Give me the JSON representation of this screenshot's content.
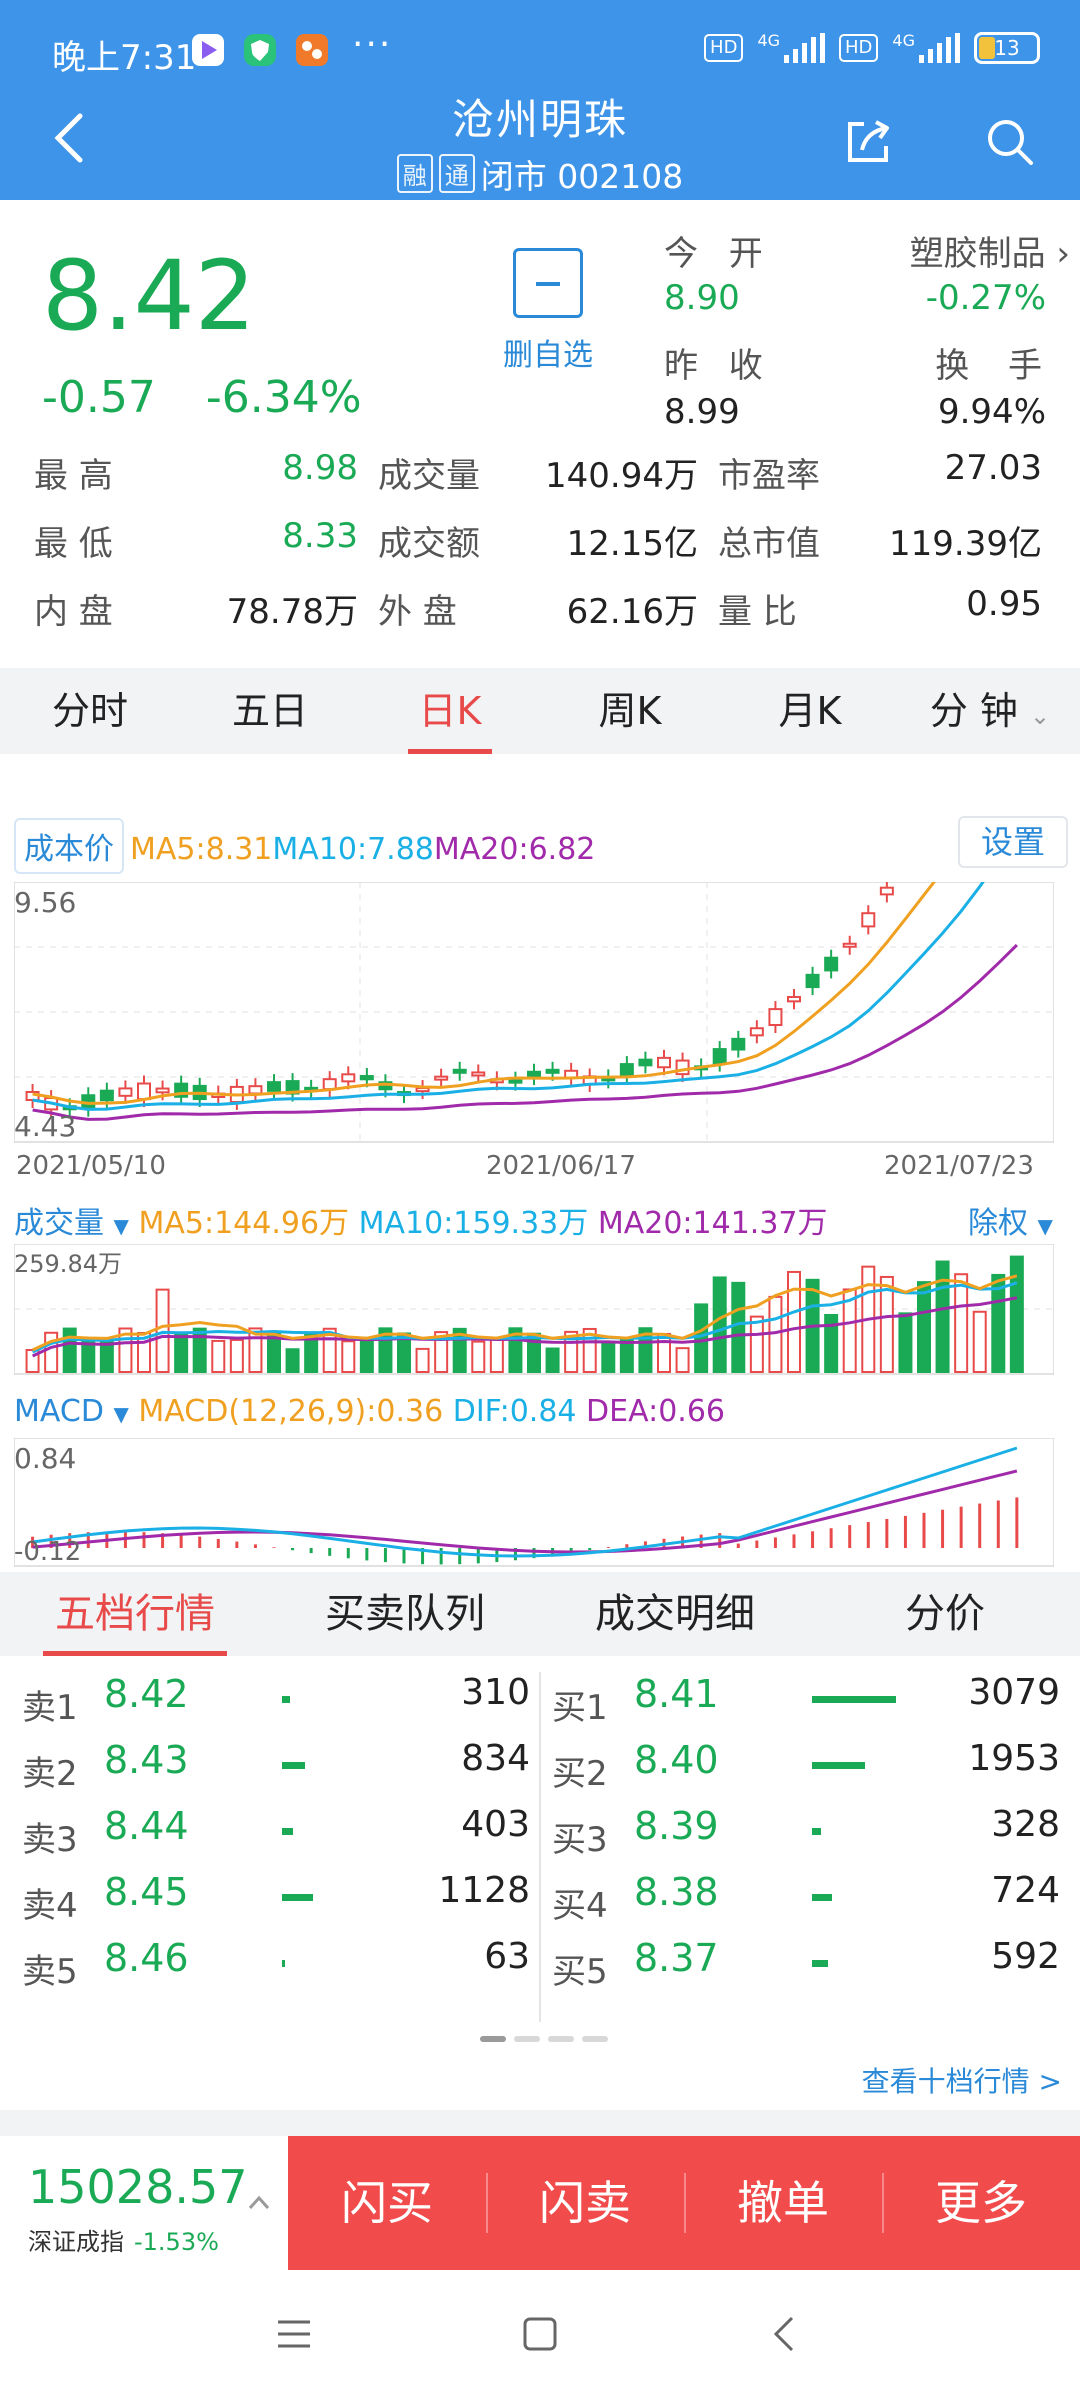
{
  "status": {
    "time": "晚上7:31",
    "dots": "···",
    "net1": "4G",
    "net2": "4G",
    "hd": "HD",
    "battery": "13"
  },
  "header": {
    "title": "沧州明珠",
    "tag1": "融",
    "tag2": "通",
    "status_code": "闭市 002108"
  },
  "quote": {
    "price": "8.42",
    "change": "-0.57",
    "change_pct": "-6.34%",
    "watch_label": "删自选",
    "open_label": "今 开",
    "open": "8.90",
    "sector": "塑胶制品",
    "sector_change": "-0.27%",
    "prev_close_label": "昨 收",
    "prev_close": "8.99",
    "turnover_label": "换 手",
    "turnover": "9.94%"
  },
  "stats": [
    {
      "l1": "最 高",
      "v1": "8.98",
      "l2": "成交量",
      "v2": "140.94万",
      "l3": "市盈率",
      "v3": "27.03"
    },
    {
      "l1": "最 低",
      "v1": "8.33",
      "l2": "成交额",
      "v2": "12.15亿",
      "l3": "总市值",
      "v3": "119.39亿"
    },
    {
      "l1": "内 盘",
      "v1": "78.78万",
      "l2": "外 盘",
      "v2": "62.16万",
      "l3": "量 比",
      "v3": "0.95"
    }
  ],
  "period_tabs": [
    "分时",
    "五日",
    "日K",
    "周K",
    "月K",
    "分 钟"
  ],
  "kline": {
    "cost_label": "成本价",
    "ma5": "MA5:8.31",
    "ma10": "MA10:7.88",
    "ma20": "MA20:6.82",
    "settings_label": "设置",
    "y_max": "9.56",
    "y_min": "4.43",
    "dates": [
      "2021/05/10",
      "2021/06/17",
      "2021/07/23"
    ]
  },
  "volume": {
    "label": "成交量",
    "ma5": "MA5:144.96万",
    "ma10": "MA10:159.33万",
    "ma20": "MA20:141.37万",
    "chuquan": "除权",
    "y_max": "259.84万"
  },
  "macd": {
    "label": "MACD",
    "value": "MACD(12,26,9):0.36",
    "dif": "DIF:0.84",
    "dea": "DEA:0.66",
    "y_max": "0.84",
    "y_min": "-0.12"
  },
  "order_tabs": [
    "五档行情",
    "买卖队列",
    "成交明细",
    "分价"
  ],
  "asks": [
    {
      "name": "卖1",
      "price": "8.42",
      "vol": "310"
    },
    {
      "name": "卖2",
      "price": "8.43",
      "vol": "834"
    },
    {
      "name": "卖3",
      "price": "8.44",
      "vol": "403"
    },
    {
      "name": "卖4",
      "price": "8.45",
      "vol": "1128"
    },
    {
      "name": "卖5",
      "price": "8.46",
      "vol": "63"
    }
  ],
  "bids": [
    {
      "name": "买1",
      "price": "8.41",
      "vol": "3079"
    },
    {
      "name": "买2",
      "price": "8.40",
      "vol": "1953"
    },
    {
      "name": "买3",
      "price": "8.39",
      "vol": "328"
    },
    {
      "name": "买4",
      "price": "8.38",
      "vol": "724"
    },
    {
      "name": "买5",
      "price": "8.37",
      "vol": "592"
    }
  ],
  "ten_link": "查看十档行情 >",
  "index": {
    "value": "15028.57",
    "name": "深证成指",
    "change": "-1.53%"
  },
  "trade_buttons": [
    "闪买",
    "闪卖",
    "撤单",
    "更多"
  ],
  "colors": {
    "header": "#3e94e8",
    "down": "#1aaa55",
    "up": "#e84a4a",
    "link": "#2a8ad8",
    "ma5": "#f0a020",
    "ma10": "#1ab0e6",
    "ma20": "#a02aaa",
    "trade": "#f24b4b"
  }
}
